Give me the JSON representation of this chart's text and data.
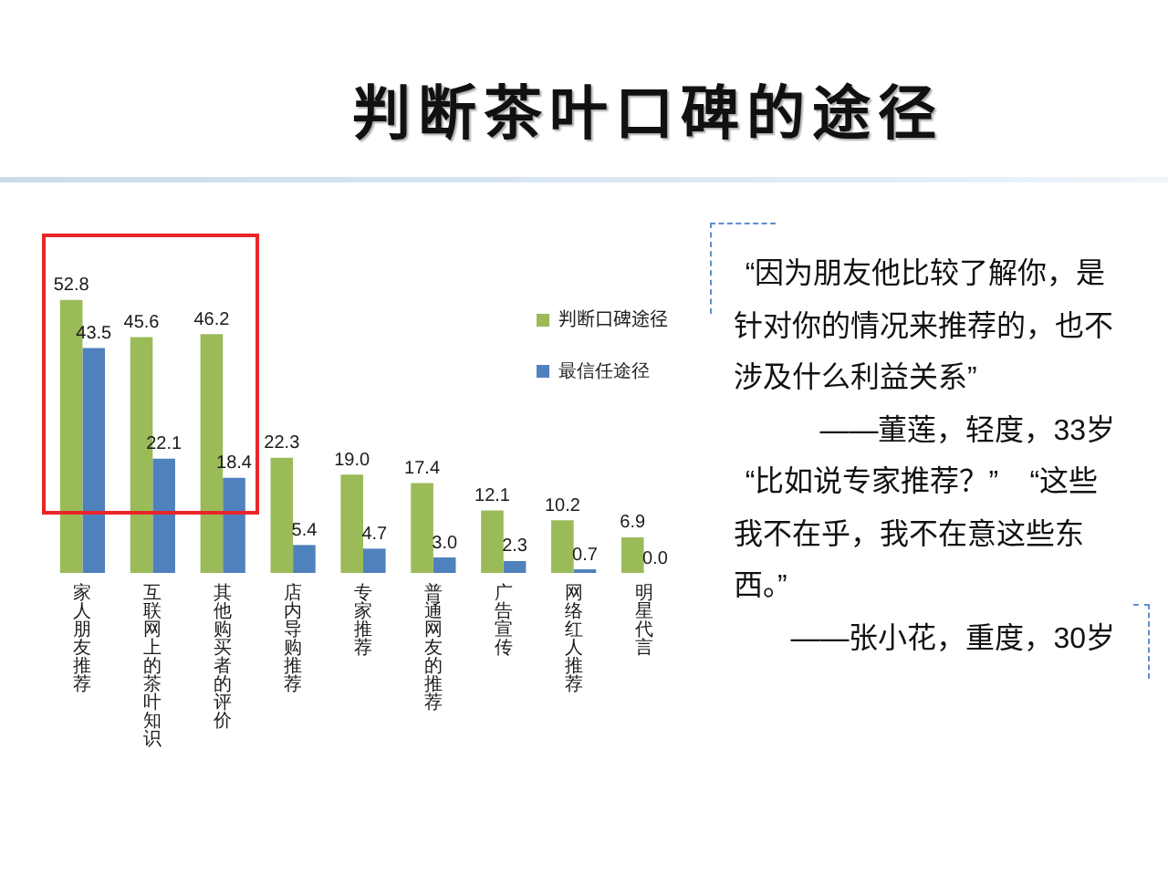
{
  "chart_data": {
    "type": "bar",
    "title": "判断茶叶口碑的途径",
    "categories": [
      "家人朋友推荐",
      "互联网上的茶叶知识",
      "其他购买者的评价",
      "店内导购推荐",
      "专家推荐",
      "普通网友的推荐",
      "广告宣传",
      "网络红人推荐",
      "明星代言"
    ],
    "series": [
      {
        "name": "判断口碑途径",
        "color": "#9bbb59",
        "values": [
          52.8,
          45.6,
          46.2,
          22.3,
          19.0,
          17.4,
          12.1,
          10.2,
          6.9
        ],
        "value_labels": [
          "52.8",
          "45.6",
          "46.2",
          "22.3",
          "19.0",
          "17.4",
          "12.1",
          "10.2",
          "6.9"
        ]
      },
      {
        "name": "最信任途径",
        "color": "#4f81bd",
        "values": [
          43.5,
          22.1,
          18.4,
          5.4,
          4.7,
          3.0,
          2.3,
          0.7,
          0.0
        ],
        "value_labels": [
          "43.5",
          "22.1",
          "18.4",
          "5.4",
          "4.7",
          "3.0",
          "2.3",
          "0.7",
          "0.0"
        ]
      }
    ],
    "legend": "top right",
    "tick_labels": "x",
    "annotations": [
      "“因为朋友他比较了解你，是针对你的情况来推荐的，也不涉及什么利益关系”",
      "——董莲，轻度，33岁",
      "“比如说专家推荐？” “这些我不在乎，我不在意这些东西。”",
      "——张小花，重度，30岁"
    ]
  }
}
